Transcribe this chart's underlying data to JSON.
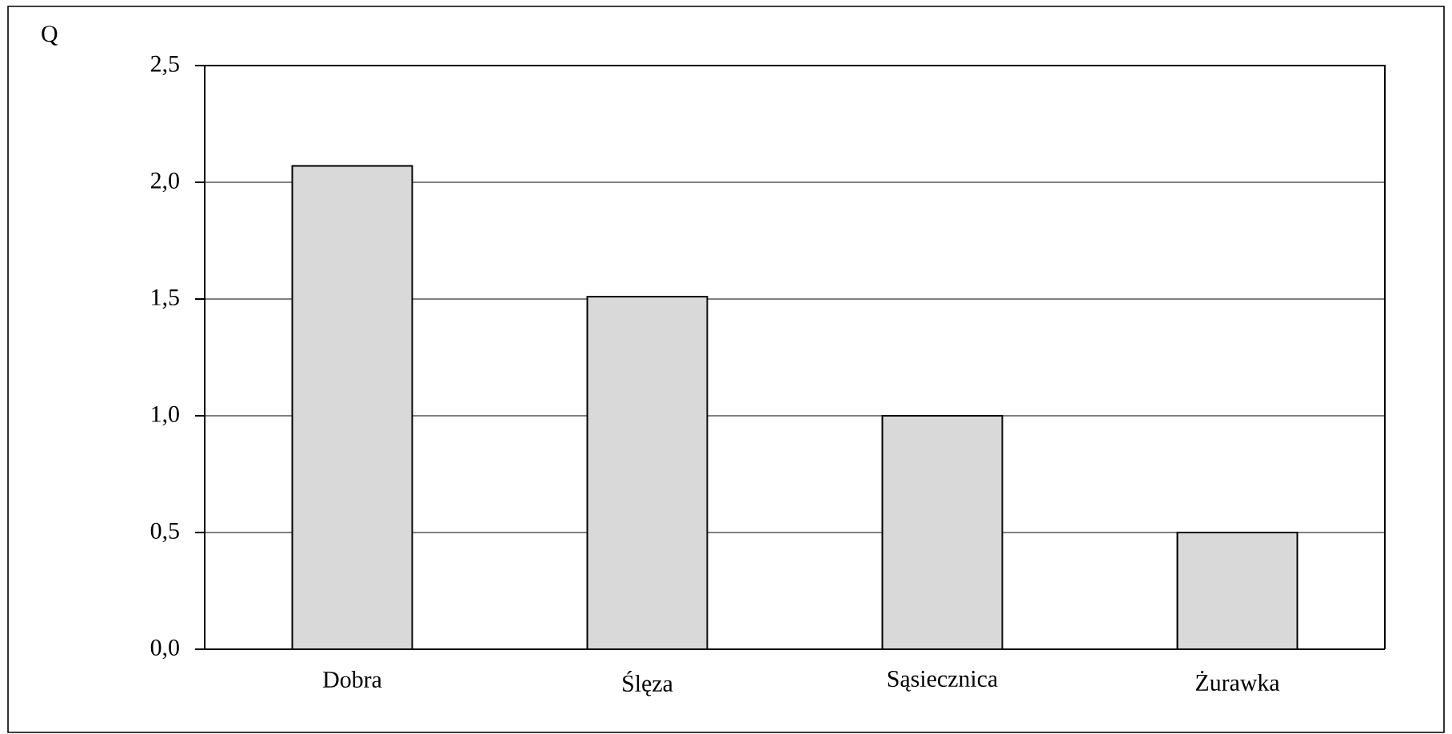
{
  "chart_data": {
    "type": "bar",
    "ylabel": "Q",
    "categories": [
      "Dobra",
      "Ślęza",
      "Sąsiecznica",
      "Żurawka"
    ],
    "values": [
      2.07,
      1.51,
      1.0,
      0.5
    ],
    "color": "#d9d9d9",
    "ylim": [
      0,
      2.5
    ],
    "yticks": [
      {
        "value": 0,
        "label": "0,0"
      },
      {
        "value": 0.5,
        "label": "0,5"
      },
      {
        "value": 1,
        "label": "1,0"
      },
      {
        "value": 1.5,
        "label": "1,5"
      },
      {
        "value": 2,
        "label": "2,0"
      },
      {
        "value": 2.5,
        "label": "2,5"
      }
    ],
    "grid": "y"
  }
}
